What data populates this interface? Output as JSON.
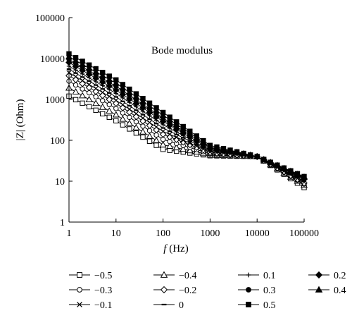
{
  "chart_data": {
    "type": "scatter",
    "title": "Bode modulus",
    "xlabel_italic": "f",
    "xlabel_rest": " (Hz)",
    "ylabel": "|Z| (Ohm)",
    "x_scale": "log",
    "y_scale": "log",
    "xlim": [
      1,
      100000
    ],
    "ylim": [
      1,
      100000
    ],
    "x_ticks": [
      "1",
      "10",
      "100",
      "1000",
      "10000",
      "100000"
    ],
    "y_ticks": [
      "1",
      "10",
      "100",
      "1000",
      "10000",
      "100000"
    ],
    "grid": false,
    "legend_position": "bottom",
    "series": [
      {
        "name": "−0.5",
        "marker": "open-square",
        "points": [
          [
            1,
            1200
          ],
          [
            10,
            300
          ],
          [
            100,
            60
          ],
          [
            1000,
            42
          ],
          [
            10000,
            40
          ],
          [
            100000,
            7
          ]
        ]
      },
      {
        "name": "−0.4",
        "marker": "open-triangle",
        "points": [
          [
            1,
            1900
          ],
          [
            10,
            420
          ],
          [
            100,
            78
          ],
          [
            1000,
            44
          ],
          [
            10000,
            40
          ],
          [
            100000,
            8
          ]
        ]
      },
      {
        "name": "0.1",
        "marker": "plus",
        "points": [
          [
            1,
            6500
          ],
          [
            10,
            1400
          ],
          [
            100,
            240
          ],
          [
            1000,
            58
          ],
          [
            10000,
            40
          ],
          [
            100000,
            11
          ]
        ]
      },
      {
        "name": "0.2",
        "marker": "filled-diamond",
        "points": [
          [
            1,
            8000
          ],
          [
            10,
            1700
          ],
          [
            100,
            290
          ],
          [
            1000,
            62
          ],
          [
            10000,
            40
          ],
          [
            100000,
            11.5
          ]
        ]
      },
      {
        "name": "−0.3",
        "marker": "open-circle",
        "points": [
          [
            1,
            2800
          ],
          [
            10,
            600
          ],
          [
            100,
            105
          ],
          [
            1000,
            47
          ],
          [
            10000,
            40
          ],
          [
            100000,
            8.5
          ]
        ]
      },
      {
        "name": "−0.2",
        "marker": "open-diamond",
        "points": [
          [
            1,
            3800
          ],
          [
            10,
            800
          ],
          [
            100,
            140
          ],
          [
            1000,
            50
          ],
          [
            10000,
            40
          ],
          [
            100000,
            9
          ]
        ]
      },
      {
        "name": "0.3",
        "marker": "filled-circle",
        "points": [
          [
            1,
            9500
          ],
          [
            10,
            2100
          ],
          [
            100,
            350
          ],
          [
            1000,
            66
          ],
          [
            10000,
            40
          ],
          [
            100000,
            12
          ]
        ]
      },
      {
        "name": "0.4",
        "marker": "filled-triangle",
        "points": [
          [
            1,
            11000
          ],
          [
            10,
            2500
          ],
          [
            100,
            410
          ],
          [
            1000,
            70
          ],
          [
            10000,
            40
          ],
          [
            100000,
            12.5
          ]
        ]
      },
      {
        "name": "−0.1",
        "marker": "x",
        "points": [
          [
            1,
            4500
          ],
          [
            10,
            950
          ],
          [
            100,
            165
          ],
          [
            1000,
            52
          ],
          [
            10000,
            40
          ],
          [
            100000,
            9.5
          ]
        ]
      },
      {
        "name": "0",
        "marker": "dash",
        "points": [
          [
            1,
            5500
          ],
          [
            10,
            1150
          ],
          [
            100,
            200
          ],
          [
            1000,
            55
          ],
          [
            10000,
            40
          ],
          [
            100000,
            10
          ]
        ]
      },
      {
        "name": "0.5",
        "marker": "filled-square",
        "points": [
          [
            1,
            13000
          ],
          [
            10,
            3000
          ],
          [
            100,
            480
          ],
          [
            1000,
            75
          ],
          [
            10000,
            40
          ],
          [
            100000,
            13
          ]
        ]
      }
    ]
  }
}
